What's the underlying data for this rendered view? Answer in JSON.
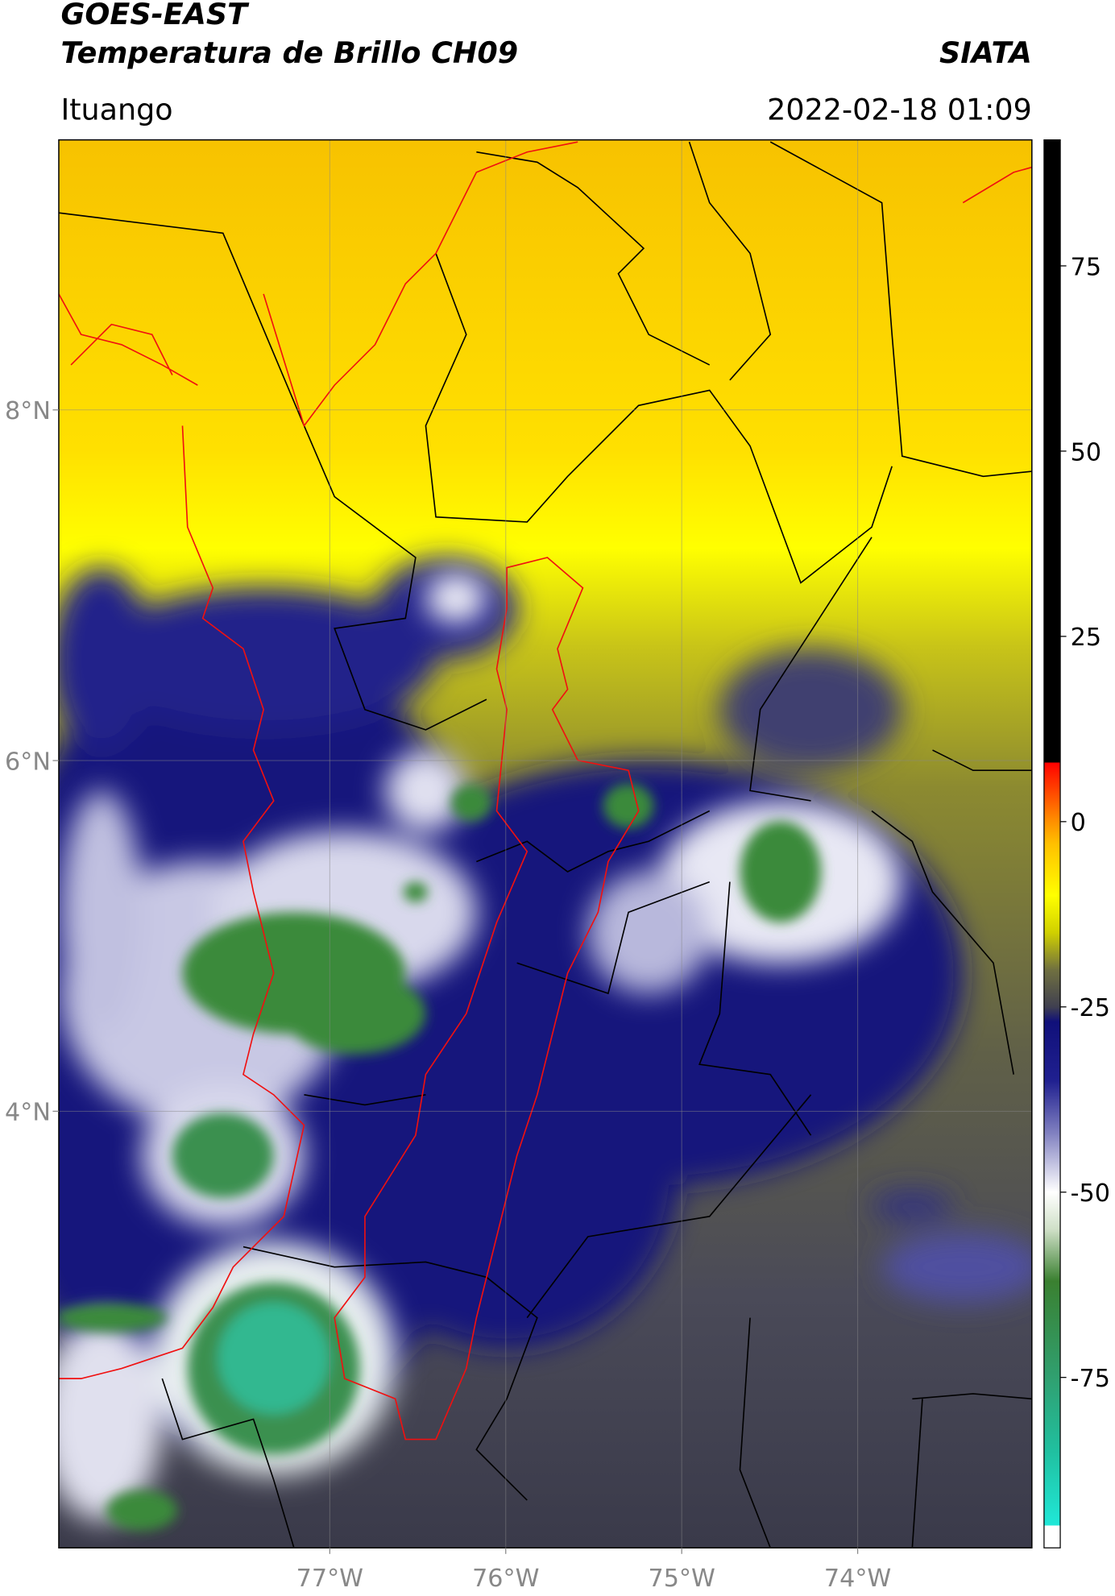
{
  "map": {
    "title": "GOES-EAST",
    "subtitle": "Temperatura de Brillo CH09",
    "agency": "SIATA",
    "location": "Ituango",
    "datetime": "2022-02-18 01:09",
    "xlim": [
      -78.54,
      -73.01
    ],
    "ylim": [
      1.51,
      9.54
    ],
    "xticks": [
      {
        "value": -77,
        "label": "77°W"
      },
      {
        "value": -76,
        "label": "76°W"
      },
      {
        "value": -75,
        "label": "75°W"
      },
      {
        "value": -74,
        "label": "74°W"
      }
    ],
    "yticks": [
      {
        "value": 4,
        "label": "4°N"
      },
      {
        "value": 6,
        "label": "6°N"
      },
      {
        "value": 8,
        "label": "8°N"
      }
    ],
    "grid": true,
    "colorbar": {
      "lim": [
        -98,
        92
      ],
      "ticks": [
        -75,
        -50,
        -25,
        0,
        25,
        50,
        75
      ],
      "stops": [
        [
          -98,
          "#ffffff"
        ],
        [
          -95,
          "#ffffff"
        ],
        [
          -95,
          "#20e8d8"
        ],
        [
          -85,
          "#20c0a0"
        ],
        [
          -75,
          "#30a070"
        ],
        [
          -62,
          "#3a8030"
        ],
        [
          -55,
          "#d0e0c8"
        ],
        [
          -50,
          "#ffffff"
        ],
        [
          -42,
          "#8080c0"
        ],
        [
          -35,
          "#202090"
        ],
        [
          -27,
          "#10107a"
        ],
        [
          -25,
          "#404050"
        ],
        [
          -20,
          "#707040"
        ],
        [
          -15,
          "#d0d000"
        ],
        [
          -10,
          "#ffff00"
        ],
        [
          -3,
          "#ffc000"
        ],
        [
          0,
          "#ff9000"
        ],
        [
          8,
          "#ff0000"
        ],
        [
          8,
          "#000000"
        ],
        [
          92,
          "#000000"
        ]
      ]
    }
  }
}
